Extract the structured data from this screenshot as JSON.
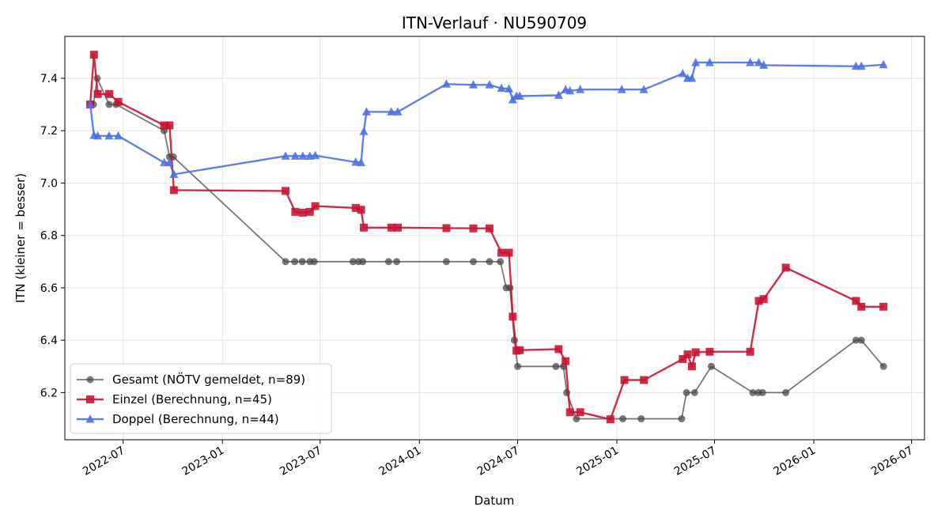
{
  "chart_data": {
    "type": "line",
    "title": "ITN-Verlauf · NU590709",
    "xlabel": "Datum",
    "ylabel": "ITN  (kleiner = besser)",
    "x_type": "date",
    "xlim": [
      "2022-03-15",
      "2026-07-25"
    ],
    "ylim": [
      6.02,
      7.56
    ],
    "x_ticks": [
      "2022-07-01",
      "2023-01-01",
      "2023-07-01",
      "2024-01-01",
      "2024-07-01",
      "2025-01-01",
      "2025-07-01",
      "2026-01-01",
      "2026-07-01"
    ],
    "x_tick_labels": [
      "2022-07",
      "2023-01",
      "2023-07",
      "2024-01",
      "2024-07",
      "2025-01",
      "2025-07",
      "2026-01",
      "2026-07"
    ],
    "y_ticks": [
      6.2,
      6.4,
      6.6,
      6.8,
      7.0,
      7.2,
      7.4
    ],
    "y_tick_labels": [
      "6.2",
      "6.4",
      "6.6",
      "6.8",
      "7.0",
      "7.2",
      "7.4"
    ],
    "grid": true,
    "legend_position": "lower-left",
    "series": [
      {
        "name": "Gesamt (NÖTV gemeldet, n=89)",
        "color": "#444444",
        "marker": "circle",
        "points": [
          [
            "2022-05-01",
            7.3
          ],
          [
            "2022-05-07",
            7.3
          ],
          [
            "2022-05-14",
            7.4
          ],
          [
            "2022-06-05",
            7.3
          ],
          [
            "2022-06-18",
            7.3
          ],
          [
            "2022-09-15",
            7.2
          ],
          [
            "2022-09-25",
            7.1
          ],
          [
            "2022-10-02",
            7.1
          ],
          [
            "2023-04-28",
            6.7
          ],
          [
            "2023-05-15",
            6.7
          ],
          [
            "2023-05-29",
            6.7
          ],
          [
            "2023-06-12",
            6.7
          ],
          [
            "2023-06-20",
            6.7
          ],
          [
            "2023-08-31",
            6.7
          ],
          [
            "2023-09-10",
            6.7
          ],
          [
            "2023-09-18",
            6.7
          ],
          [
            "2023-11-05",
            6.7
          ],
          [
            "2023-11-20",
            6.7
          ],
          [
            "2024-02-20",
            6.7
          ],
          [
            "2024-04-10",
            6.7
          ],
          [
            "2024-05-10",
            6.7
          ],
          [
            "2024-05-30",
            6.7
          ],
          [
            "2024-06-10",
            6.6
          ],
          [
            "2024-06-17",
            6.6
          ],
          [
            "2024-06-25",
            6.4
          ],
          [
            "2024-07-01",
            6.3
          ],
          [
            "2024-09-10",
            6.3
          ],
          [
            "2024-09-24",
            6.3
          ],
          [
            "2024-09-30",
            6.2
          ],
          [
            "2024-10-18",
            6.1
          ],
          [
            "2025-01-12",
            6.1
          ],
          [
            "2025-02-15",
            6.1
          ],
          [
            "2025-05-01",
            6.1
          ],
          [
            "2025-05-10",
            6.2
          ],
          [
            "2025-05-25",
            6.2
          ],
          [
            "2025-06-25",
            6.3
          ],
          [
            "2025-09-10",
            6.2
          ],
          [
            "2025-09-20",
            6.2
          ],
          [
            "2025-09-28",
            6.2
          ],
          [
            "2025-11-10",
            6.2
          ],
          [
            "2026-03-20",
            6.4
          ],
          [
            "2026-03-30",
            6.4
          ],
          [
            "2026-05-10",
            6.3
          ]
        ]
      },
      {
        "name": "Einzel (Berechnung, n=45)",
        "color": "#c8102e",
        "marker": "square",
        "points": [
          [
            "2022-05-01",
            7.3
          ],
          [
            "2022-05-08",
            7.49
          ],
          [
            "2022-05-15",
            7.34
          ],
          [
            "2022-06-05",
            7.34
          ],
          [
            "2022-06-22",
            7.31
          ],
          [
            "2022-09-15",
            7.22
          ],
          [
            "2022-09-25",
            7.22
          ],
          [
            "2022-10-03",
            6.973
          ],
          [
            "2023-04-28",
            6.97
          ],
          [
            "2023-05-16",
            6.89
          ],
          [
            "2023-05-30",
            6.887
          ],
          [
            "2023-06-12",
            6.89
          ],
          [
            "2023-06-22",
            6.912
          ],
          [
            "2023-09-05",
            6.905
          ],
          [
            "2023-09-15",
            6.898
          ],
          [
            "2023-09-20",
            6.83
          ],
          [
            "2023-11-10",
            6.83
          ],
          [
            "2023-11-22",
            6.83
          ],
          [
            "2024-02-20",
            6.828
          ],
          [
            "2024-04-10",
            6.827
          ],
          [
            "2024-05-10",
            6.827
          ],
          [
            "2024-06-01",
            6.734
          ],
          [
            "2024-06-15",
            6.734
          ],
          [
            "2024-06-22",
            6.49
          ],
          [
            "2024-06-29",
            6.36
          ],
          [
            "2024-07-05",
            6.362
          ],
          [
            "2024-09-15",
            6.366
          ],
          [
            "2024-09-28",
            6.32
          ],
          [
            "2024-10-06",
            6.125
          ],
          [
            "2024-10-25",
            6.125
          ],
          [
            "2024-12-20",
            6.098
          ],
          [
            "2025-01-15",
            6.248
          ],
          [
            "2025-02-20",
            6.248
          ],
          [
            "2025-05-03",
            6.328
          ],
          [
            "2025-05-12",
            6.346
          ],
          [
            "2025-05-20",
            6.3
          ],
          [
            "2025-05-27",
            6.354
          ],
          [
            "2025-06-22",
            6.356
          ],
          [
            "2025-09-05",
            6.356
          ],
          [
            "2025-09-21",
            6.55
          ],
          [
            "2025-09-30",
            6.557
          ],
          [
            "2025-11-10",
            6.677
          ],
          [
            "2026-03-20",
            6.55
          ],
          [
            "2026-03-30",
            6.528
          ],
          [
            "2026-05-10",
            6.528
          ]
        ]
      },
      {
        "name": "Doppel (Berechnung, n=44)",
        "color": "#4a6ee6",
        "marker": "triangle",
        "points": [
          [
            "2022-05-01",
            7.3
          ],
          [
            "2022-05-08",
            7.182
          ],
          [
            "2022-05-15",
            7.18
          ],
          [
            "2022-06-05",
            7.18
          ],
          [
            "2022-06-22",
            7.18
          ],
          [
            "2022-09-15",
            7.078
          ],
          [
            "2022-09-25",
            7.078
          ],
          [
            "2022-10-03",
            7.033
          ],
          [
            "2023-04-28",
            7.103
          ],
          [
            "2023-05-16",
            7.103
          ],
          [
            "2023-05-30",
            7.103
          ],
          [
            "2023-06-12",
            7.103
          ],
          [
            "2023-06-22",
            7.105
          ],
          [
            "2023-09-05",
            7.08
          ],
          [
            "2023-09-15",
            7.078
          ],
          [
            "2023-09-20",
            7.197
          ],
          [
            "2023-09-25",
            7.272
          ],
          [
            "2023-11-10",
            7.272
          ],
          [
            "2023-11-22",
            7.272
          ],
          [
            "2024-02-20",
            7.378
          ],
          [
            "2024-04-10",
            7.375
          ],
          [
            "2024-05-10",
            7.375
          ],
          [
            "2024-06-01",
            7.362
          ],
          [
            "2024-06-15",
            7.36
          ],
          [
            "2024-06-22",
            7.318
          ],
          [
            "2024-06-29",
            7.332
          ],
          [
            "2024-07-05",
            7.332
          ],
          [
            "2024-09-15",
            7.335
          ],
          [
            "2024-09-28",
            7.357
          ],
          [
            "2024-10-06",
            7.352
          ],
          [
            "2024-10-25",
            7.357
          ],
          [
            "2025-01-10",
            7.357
          ],
          [
            "2025-02-20",
            7.357
          ],
          [
            "2025-05-03",
            7.418
          ],
          [
            "2025-05-12",
            7.4
          ],
          [
            "2025-05-20",
            7.4
          ],
          [
            "2025-05-27",
            7.46
          ],
          [
            "2025-06-22",
            7.46
          ],
          [
            "2025-09-05",
            7.46
          ],
          [
            "2025-09-21",
            7.46
          ],
          [
            "2025-09-30",
            7.45
          ],
          [
            "2026-03-20",
            7.446
          ],
          [
            "2026-03-30",
            7.446
          ],
          [
            "2026-05-10",
            7.452
          ]
        ]
      }
    ]
  }
}
